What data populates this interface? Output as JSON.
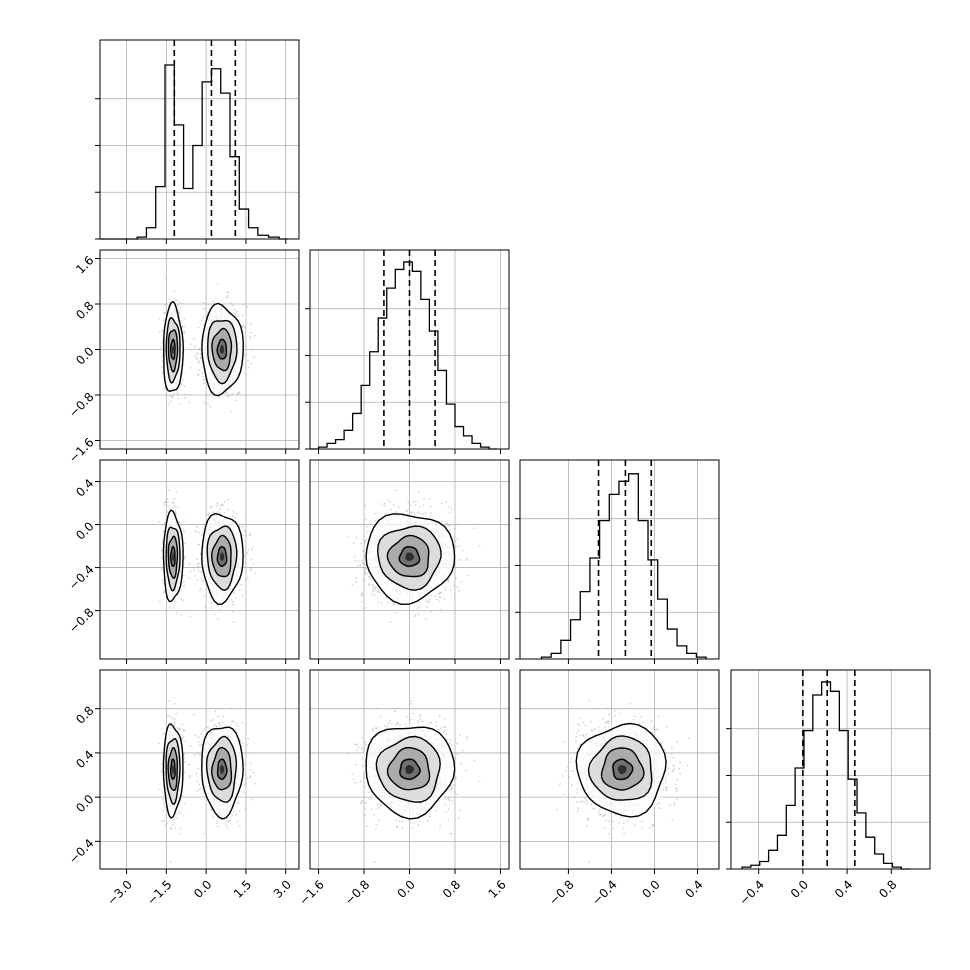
{
  "chart_data": {
    "type": "corner",
    "n_params": 4,
    "grid": true,
    "parameters": [
      {
        "range": [
          -4.0,
          3.5
        ],
        "ticks": [
          -3.0,
          -1.5,
          0.0,
          1.5,
          3.0
        ],
        "tick_labels": [
          "−3.0",
          "−1.5",
          "0.0",
          "1.5",
          "3.0"
        ],
        "quantiles": [
          -1.2,
          0.2,
          1.1
        ],
        "hist_edges": [
          -4.0,
          -3.65,
          -3.3,
          -2.95,
          -2.6,
          -2.25,
          -1.9,
          -1.55,
          -1.2,
          -0.85,
          -0.5,
          -0.15,
          0.2,
          0.55,
          0.9,
          1.25,
          1.6,
          1.95,
          2.35,
          2.75,
          3.1
        ],
        "hist_values": [
          0,
          0,
          0,
          0,
          0.01,
          0.06,
          0.28,
          0.93,
          0.61,
          0.27,
          0.5,
          0.84,
          0.91,
          0.78,
          0.44,
          0.16,
          0.06,
          0.02,
          0.01,
          0
        ]
      },
      {
        "range": [
          -1.75,
          1.75
        ],
        "ticks": [
          -1.6,
          -0.8,
          0.0,
          0.8,
          1.6
        ],
        "tick_labels": [
          "−1.6",
          "−0.8",
          "0.0",
          "0.8",
          "1.6"
        ],
        "quantiles": [
          -0.45,
          0.0,
          0.45
        ],
        "hist_edges": [
          -1.75,
          -1.6,
          -1.45,
          -1.3,
          -1.15,
          -1.0,
          -0.85,
          -0.7,
          -0.55,
          -0.4,
          -0.25,
          -0.1,
          0.05,
          0.2,
          0.35,
          0.5,
          0.65,
          0.8,
          0.95,
          1.1,
          1.25,
          1.4,
          1.55
        ],
        "hist_values": [
          0,
          0.01,
          0.03,
          0.05,
          0.1,
          0.19,
          0.34,
          0.52,
          0.7,
          0.86,
          0.96,
          1.0,
          0.95,
          0.8,
          0.63,
          0.42,
          0.24,
          0.12,
          0.07,
          0.03,
          0.01,
          0
        ]
      },
      {
        "range": [
          -1.25,
          0.6
        ],
        "ticks": [
          -0.8,
          -0.4,
          0.0,
          0.4
        ],
        "tick_labels": [
          "−0.8",
          "−0.4",
          "0.0",
          "0.4"
        ],
        "quantiles": [
          -0.52,
          -0.27,
          -0.03
        ],
        "hist_edges": [
          -1.05,
          -0.96,
          -0.87,
          -0.78,
          -0.69,
          -0.6,
          -0.51,
          -0.42,
          -0.33,
          -0.24,
          -0.15,
          -0.06,
          0.03,
          0.12,
          0.21,
          0.3,
          0.39,
          0.48
        ],
        "hist_values": [
          0.01,
          0.03,
          0.1,
          0.21,
          0.36,
          0.54,
          0.74,
          0.88,
          0.95,
          0.99,
          0.74,
          0.53,
          0.32,
          0.16,
          0.07,
          0.03,
          0.01
        ]
      },
      {
        "range": [
          -0.65,
          1.15
        ],
        "ticks": [
          -0.4,
          0.0,
          0.4,
          0.8
        ],
        "tick_labels": [
          "−0.4",
          "0.0",
          "0.4",
          "0.8"
        ],
        "quantiles": [
          0.0,
          0.22,
          0.47
        ],
        "hist_edges": [
          -0.55,
          -0.47,
          -0.39,
          -0.31,
          -0.23,
          -0.15,
          -0.07,
          0.01,
          0.09,
          0.17,
          0.25,
          0.33,
          0.41,
          0.49,
          0.57,
          0.65,
          0.73,
          0.81,
          0.89,
          0.97
        ],
        "hist_values": [
          0.01,
          0.02,
          0.04,
          0.1,
          0.18,
          0.34,
          0.54,
          0.74,
          0.93,
          1.0,
          0.95,
          0.74,
          0.48,
          0.3,
          0.17,
          0.08,
          0.03,
          0.01,
          0
        ]
      }
    ],
    "colors": {
      "line": "#000000",
      "scatter": "#b3b3b3",
      "grid": "#b0b0b0"
    }
  }
}
